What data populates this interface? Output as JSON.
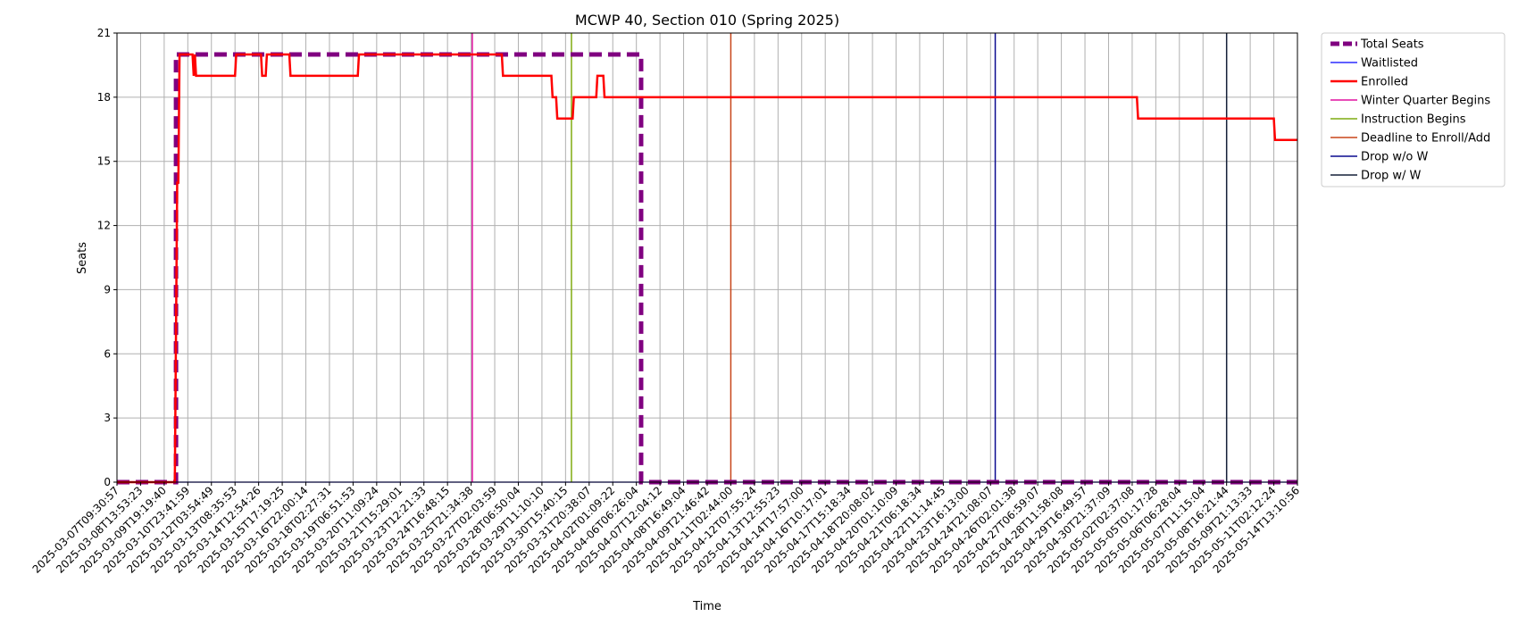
{
  "chart_data": {
    "type": "line",
    "title": "MCWP 40, Section 010 (Spring 2025)",
    "xlabel": "Time",
    "ylabel": "Seats",
    "ylim": [
      0,
      21
    ],
    "yticks": [
      0,
      3,
      6,
      9,
      12,
      15,
      18,
      21
    ],
    "grid": true,
    "legend_position": "outside-top-right",
    "x_tick_labels": [
      "2025-03-07T09:30:57",
      "2025-03-08T13:53:23",
      "2025-03-09T19:19:40",
      "2025-03-10T23:41:59",
      "2025-03-12T03:54:49",
      "2025-03-13T08:35:53",
      "2025-03-14T12:54:26",
      "2025-03-15T17:19:25",
      "2025-03-16T22:00:14",
      "2025-03-18T02:27:31",
      "2025-03-19T06:51:53",
      "2025-03-20T11:09:24",
      "2025-03-21T15:29:01",
      "2025-03-23T12:21:33",
      "2025-03-24T16:48:15",
      "2025-03-25T21:34:38",
      "2025-03-27T02:03:59",
      "2025-03-28T06:50:04",
      "2025-03-29T11:10:10",
      "2025-03-30T15:40:15",
      "2025-03-31T20:38:07",
      "2025-04-02T01:09:22",
      "2025-04-06T06:26:04",
      "2025-04-07T12:04:12",
      "2025-04-08T16:49:04",
      "2025-04-09T21:46:42",
      "2025-04-11T02:44:00",
      "2025-04-12T07:55:24",
      "2025-04-13T12:55:23",
      "2025-04-14T17:57:00",
      "2025-04-16T10:17:01",
      "2025-04-17T15:18:34",
      "2025-04-18T20:08:02",
      "2025-04-20T01:10:09",
      "2025-04-21T06:18:34",
      "2025-04-22T11:14:45",
      "2025-04-23T16:13:00",
      "2025-04-24T21:08:07",
      "2025-04-26T02:01:38",
      "2025-04-27T06:59:07",
      "2025-04-28T11:58:08",
      "2025-04-29T16:49:57",
      "2025-04-30T21:37:09",
      "2025-05-02T02:37:08",
      "2025-05-05T01:17:28",
      "2025-05-06T06:28:04",
      "2025-05-07T11:15:04",
      "2025-05-08T16:21:44",
      "2025-05-09T21:13:33",
      "2025-05-11T02:12:24",
      "2025-05-14T13:10:56"
    ],
    "x_range": [
      0,
      50
    ],
    "series": [
      {
        "name": "Total Seats",
        "color": "#800080",
        "style": "dashed-thick",
        "x": [
          0,
          2.5,
          2.5,
          22.2,
          22.2,
          50
        ],
        "y": [
          0,
          0,
          20,
          20,
          0,
          0
        ]
      },
      {
        "name": "Waitlisted",
        "color": "#0000ff",
        "style": "solid-thin",
        "x": [
          0,
          50
        ],
        "y": [
          0,
          0
        ]
      },
      {
        "name": "Enrolled",
        "color": "#ff0000",
        "style": "solid",
        "x": [
          0,
          2.45,
          2.55,
          2.6,
          2.65,
          3.2,
          3.25,
          3.3,
          3.35,
          5.0,
          5.05,
          6.1,
          6.15,
          6.3,
          6.35,
          7.3,
          7.35,
          10.2,
          10.25,
          16.3,
          16.35,
          18.4,
          18.45,
          18.6,
          18.65,
          19.3,
          19.35,
          20.3,
          20.35,
          20.6,
          20.65,
          20.85,
          20.9,
          43.2,
          43.25,
          49.0,
          49.05,
          50
        ],
        "y": [
          0,
          0,
          14,
          14,
          20,
          20,
          19,
          20,
          19,
          19,
          20,
          20,
          19,
          19,
          20,
          20,
          19,
          19,
          20,
          20,
          19,
          19,
          18,
          18,
          17,
          17,
          18,
          18,
          19,
          19,
          18,
          18,
          18,
          18,
          17,
          17,
          16,
          16
        ]
      }
    ],
    "vertical_markers": [
      {
        "name": "Winter Quarter Begins",
        "color": "#e0109f",
        "x": 15.05
      },
      {
        "name": "Instruction Begins",
        "color": "#7fac10",
        "x": 19.25
      },
      {
        "name": "Deadline to Enroll/Add",
        "color": "#c8451a",
        "x": 26.0
      },
      {
        "name": "Drop w/o W",
        "color": "#0a0a8f",
        "x": 37.2
      },
      {
        "name": "Drop w/ W",
        "color": "#152038",
        "x": 47.0
      }
    ]
  }
}
